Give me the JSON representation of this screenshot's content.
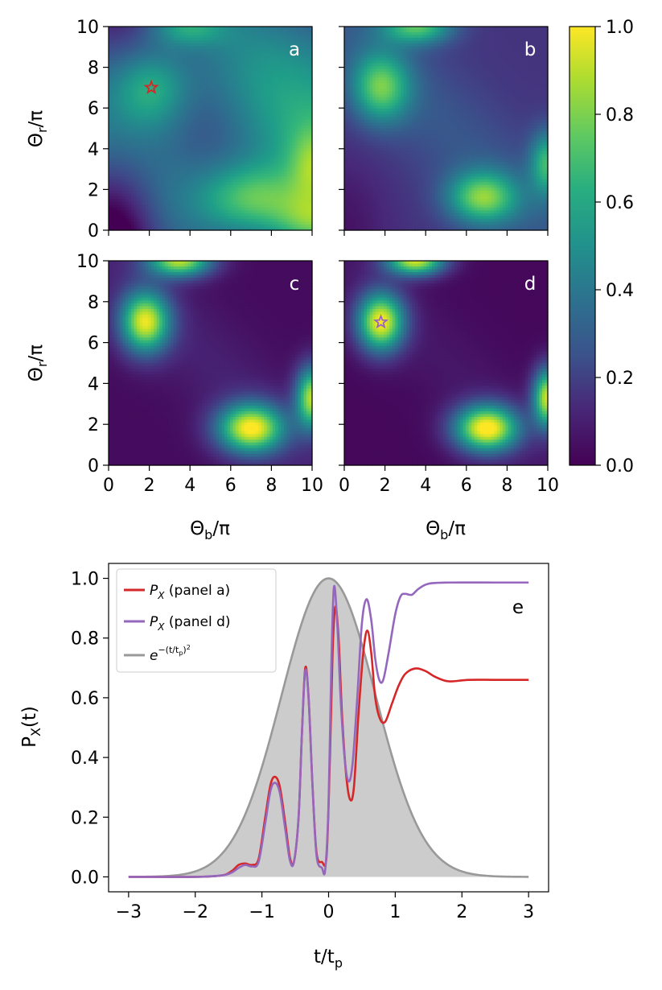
{
  "chart_data": [
    {
      "type": "heatmap",
      "panels": [
        {
          "label": "a",
          "mode": "a",
          "marker": {
            "x": 2.1,
            "y": 7.0,
            "color": "#d62728"
          }
        },
        {
          "label": "b",
          "mode": "b",
          "marker": null
        },
        {
          "label": "c",
          "mode": "c",
          "marker": null
        },
        {
          "label": "d",
          "mode": "d",
          "marker": {
            "x": 1.8,
            "y": 7.0,
            "color": "#9467bd"
          }
        }
      ],
      "xlim": [
        0,
        10
      ],
      "ylim": [
        0,
        10
      ],
      "xticks": [
        "0",
        "2",
        "4",
        "6",
        "8",
        "10"
      ],
      "yticks": [
        "0",
        "2",
        "4",
        "6",
        "8",
        "10"
      ],
      "xlabel": {
        "base": "Θ",
        "sub": "b",
        "tail": "/π"
      },
      "ylabel": {
        "base": "Θ",
        "sub": "r",
        "tail": "/π"
      },
      "colormap": "viridis",
      "colorbar": {
        "range": [
          0,
          1
        ],
        "ticks": [
          "0.0",
          "0.2",
          "0.4",
          "0.6",
          "0.8",
          "1.0"
        ]
      }
    },
    {
      "type": "line",
      "panel_label": "e",
      "xlim": [
        -3.3,
        3.3
      ],
      "ylim": [
        -0.05,
        1.05
      ],
      "xticks": [
        "−3",
        "−2",
        "−1",
        "0",
        "1",
        "2",
        "3"
      ],
      "yticks": [
        "0.0",
        "0.2",
        "0.4",
        "0.6",
        "0.8",
        "1.0"
      ],
      "xlabel": {
        "base": "t/t",
        "sub": "p"
      },
      "ylabel": {
        "base": "P",
        "sub": "X",
        "tail": "(t)"
      },
      "series": [
        {
          "name": "PX (panel a)",
          "legend_main": "P",
          "legend_sub": "X",
          "legend_tail": " (panel a)",
          "color": "#d62728",
          "points": [
            [
              -3,
              0
            ],
            [
              -2,
              0
            ],
            [
              -1.6,
              0.005
            ],
            [
              -1.45,
              0.02
            ],
            [
              -1.35,
              0.04
            ],
            [
              -1.25,
              0.045
            ],
            [
              -1.15,
              0.04
            ],
            [
              -1.05,
              0.06
            ],
            [
              -0.95,
              0.2
            ],
            [
              -0.87,
              0.31
            ],
            [
              -0.8,
              0.335
            ],
            [
              -0.73,
              0.3
            ],
            [
              -0.65,
              0.18
            ],
            [
              -0.58,
              0.065
            ],
            [
              -0.52,
              0.05
            ],
            [
              -0.45,
              0.2
            ],
            [
              -0.4,
              0.48
            ],
            [
              -0.35,
              0.7
            ],
            [
              -0.3,
              0.6
            ],
            [
              -0.24,
              0.3
            ],
            [
              -0.18,
              0.08
            ],
            [
              -0.1,
              0.05
            ],
            [
              -0.03,
              0.07
            ],
            [
              0.02,
              0.4
            ],
            [
              0.06,
              0.75
            ],
            [
              0.1,
              0.905
            ],
            [
              0.15,
              0.8
            ],
            [
              0.2,
              0.55
            ],
            [
              0.26,
              0.35
            ],
            [
              0.32,
              0.26
            ],
            [
              0.38,
              0.3
            ],
            [
              0.45,
              0.55
            ],
            [
              0.52,
              0.75
            ],
            [
              0.58,
              0.825
            ],
            [
              0.64,
              0.75
            ],
            [
              0.7,
              0.6
            ],
            [
              0.77,
              0.53
            ],
            [
              0.85,
              0.52
            ],
            [
              0.95,
              0.58
            ],
            [
              1.05,
              0.64
            ],
            [
              1.15,
              0.68
            ],
            [
              1.3,
              0.698
            ],
            [
              1.45,
              0.69
            ],
            [
              1.6,
              0.67
            ],
            [
              1.8,
              0.655
            ],
            [
              2.1,
              0.66
            ],
            [
              2.5,
              0.66
            ],
            [
              3,
              0.66
            ]
          ]
        },
        {
          "name": "PX (panel d)",
          "legend_main": "P",
          "legend_sub": "X",
          "legend_tail": " (panel d)",
          "color": "#9467bd",
          "points": [
            [
              -3,
              0
            ],
            [
              -2,
              0
            ],
            [
              -1.6,
              0.005
            ],
            [
              -1.45,
              0.015
            ],
            [
              -1.35,
              0.03
            ],
            [
              -1.25,
              0.04
            ],
            [
              -1.15,
              0.035
            ],
            [
              -1.05,
              0.05
            ],
            [
              -0.95,
              0.18
            ],
            [
              -0.87,
              0.29
            ],
            [
              -0.8,
              0.315
            ],
            [
              -0.73,
              0.28
            ],
            [
              -0.65,
              0.16
            ],
            [
              -0.58,
              0.055
            ],
            [
              -0.52,
              0.05
            ],
            [
              -0.45,
              0.2
            ],
            [
              -0.4,
              0.48
            ],
            [
              -0.35,
              0.69
            ],
            [
              -0.3,
              0.6
            ],
            [
              -0.24,
              0.3
            ],
            [
              -0.18,
              0.07
            ],
            [
              -0.1,
              0.03
            ],
            [
              -0.05,
              0.025
            ],
            [
              0.0,
              0.25
            ],
            [
              0.04,
              0.7
            ],
            [
              0.08,
              0.97
            ],
            [
              0.13,
              0.85
            ],
            [
              0.18,
              0.6
            ],
            [
              0.24,
              0.4
            ],
            [
              0.3,
              0.32
            ],
            [
              0.36,
              0.38
            ],
            [
              0.43,
              0.6
            ],
            [
              0.5,
              0.85
            ],
            [
              0.57,
              0.93
            ],
            [
              0.64,
              0.86
            ],
            [
              0.7,
              0.73
            ],
            [
              0.76,
              0.66
            ],
            [
              0.82,
              0.66
            ],
            [
              0.9,
              0.75
            ],
            [
              1.0,
              0.88
            ],
            [
              1.08,
              0.94
            ],
            [
              1.15,
              0.948
            ],
            [
              1.25,
              0.945
            ],
            [
              1.35,
              0.965
            ],
            [
              1.5,
              0.982
            ],
            [
              1.8,
              0.986
            ],
            [
              2.5,
              0.986
            ],
            [
              3,
              0.986
            ]
          ]
        },
        {
          "name": "e^-(t/tp)^2",
          "legend_main": "e",
          "legend_sup": "−(t/t",
          "legend_sup_sub": "p",
          "legend_sup_tail": ")",
          "legend_sup_exp": "2",
          "color": "#999999",
          "fill": "#cccccc",
          "function": "gaussian",
          "x_range": [
            -3,
            3
          ]
        }
      ]
    }
  ]
}
